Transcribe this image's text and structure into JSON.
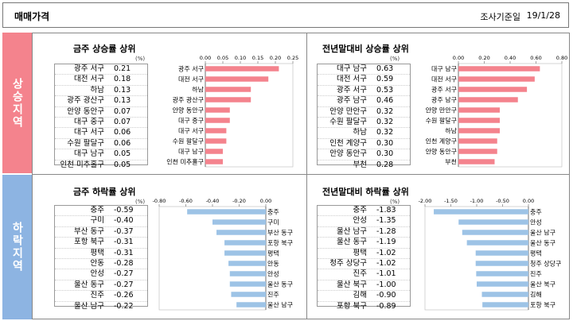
{
  "header": {
    "title": "매매가격",
    "date_label": "조사기준일",
    "date_value": "19/1/28"
  },
  "sides": {
    "up": "상승지역",
    "down": "하락지역"
  },
  "unit": "(%)",
  "colors": {
    "rise_bar": "#f4838d",
    "fall_bar": "#9dc3e6",
    "rise_side": "#f4838d",
    "fall_side": "#8db4e2"
  },
  "chart_data": [
    {
      "type": "bar",
      "title": "금주 상승률 상위",
      "categories": [
        "광주 서구",
        "대전 서구",
        "하남",
        "광주 광산구",
        "안양 동안구",
        "대구 중구",
        "대구 서구",
        "수원 팔달구",
        "대구 남구",
        "인천 미추홀구"
      ],
      "values": [
        0.21,
        0.18,
        0.13,
        0.13,
        0.07,
        0.07,
        0.06,
        0.06,
        0.05,
        0.05
      ],
      "value_labels": [
        "0.21",
        "0.18",
        "0.13",
        "0.13",
        "0.07",
        "0.07",
        "0.06",
        "0.06",
        "0.05",
        "0.05"
      ],
      "xlim": [
        0,
        0.25
      ],
      "ticks": [
        0,
        0.05,
        0.1,
        0.15,
        0.2,
        0.25
      ],
      "tick_labels": [
        "0.00",
        "0.05",
        "0.10",
        "0.15",
        "0.20",
        "0.25"
      ]
    },
    {
      "type": "bar",
      "title": "전년말대비 상승률 상위",
      "categories": [
        "대구 남구",
        "대전 서구",
        "광주 서구",
        "광주 남구",
        "안양 만안구",
        "수원 팔달구",
        "하남",
        "인천 계양구",
        "안양 동안구",
        "부천"
      ],
      "values": [
        0.63,
        0.59,
        0.53,
        0.46,
        0.32,
        0.32,
        0.32,
        0.3,
        0.3,
        0.28
      ],
      "value_labels": [
        "0.63",
        "0.59",
        "0.53",
        "0.46",
        "0.32",
        "0.32",
        "0.32",
        "0.30",
        "0.30",
        "0.28"
      ],
      "xlim": [
        0,
        0.8
      ],
      "ticks": [
        0,
        0.2,
        0.4,
        0.6,
        0.8
      ],
      "tick_labels": [
        "0.00",
        "0.20",
        "0.40",
        "0.60",
        "0.80"
      ]
    },
    {
      "type": "bar",
      "title": "금주 하락률 상위",
      "categories": [
        "충주",
        "구미",
        "부산 동구",
        "포항 북구",
        "평택",
        "안동",
        "안성",
        "울산 동구",
        "진주",
        "울산 남구"
      ],
      "values": [
        -0.59,
        -0.4,
        -0.37,
        -0.31,
        -0.31,
        -0.28,
        -0.27,
        -0.27,
        -0.26,
        -0.22
      ],
      "value_labels": [
        "-0.59",
        "-0.40",
        "-0.37",
        "-0.31",
        "-0.31",
        "-0.28",
        "-0.27",
        "-0.27",
        "-0.26",
        "-0.22"
      ],
      "xlim": [
        -0.8,
        0
      ],
      "ticks": [
        -0.8,
        -0.6,
        -0.4,
        -0.2,
        0
      ],
      "tick_labels": [
        "-0.80",
        "-0.60",
        "-0.40",
        "-0.20",
        "0.00"
      ]
    },
    {
      "type": "bar",
      "title": "전년말대비 하락률 상위",
      "categories": [
        "충주",
        "안성",
        "울산 남구",
        "울산 동구",
        "평택",
        "청주 상당구",
        "진주",
        "울산 북구",
        "김해",
        "포항 북구"
      ],
      "values": [
        -1.83,
        -1.35,
        -1.28,
        -1.19,
        -1.02,
        -1.02,
        -1.01,
        -1.0,
        -0.9,
        -0.89
      ],
      "value_labels": [
        "-1.83",
        "-1.35",
        "-1.28",
        "-1.19",
        "-1.02",
        "-1.02",
        "-1.01",
        "-1.00",
        "-0.90",
        "-0.89"
      ],
      "xlim": [
        -2,
        0
      ],
      "ticks": [
        -2,
        -1.5,
        -1,
        -0.5,
        0
      ],
      "tick_labels": [
        "-2.00",
        "-1.50",
        "-1.00",
        "-0.50",
        "0.00"
      ]
    }
  ]
}
